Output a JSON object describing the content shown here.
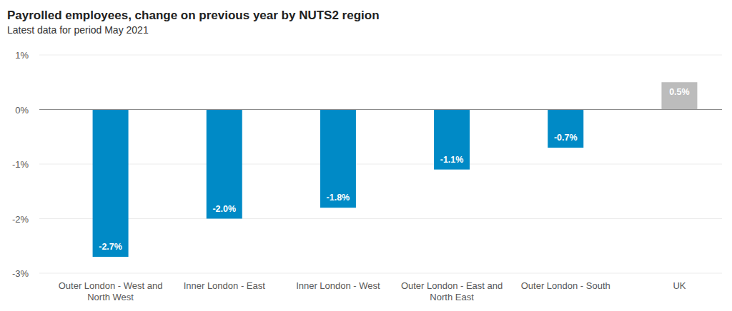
{
  "chart_data": {
    "type": "bar",
    "title": "Payrolled employees, change on previous year by NUTS2 region",
    "subtitle": "Latest data for period May 2021",
    "categories": [
      "Outer London - West and North West",
      "Inner London - East",
      "Inner London - West",
      "Outer London - East and North East",
      "Outer London - South",
      "UK"
    ],
    "values": [
      -2.7,
      -2.0,
      -1.8,
      -1.1,
      -0.7,
      0.5
    ],
    "value_labels": [
      "-2.7%",
      "-2.0%",
      "-1.8%",
      "-1.1%",
      "-0.7%",
      "0.5%"
    ],
    "colors": [
      "#008ac6",
      "#008ac6",
      "#008ac6",
      "#008ac6",
      "#008ac6",
      "#bcbcbc"
    ],
    "ylim": [
      -3,
      1
    ],
    "yticks": [
      {
        "value": 1,
        "label": "1%"
      },
      {
        "value": 0,
        "label": "0%"
      },
      {
        "value": -1,
        "label": "-1%"
      },
      {
        "value": -2,
        "label": "-2%"
      },
      {
        "value": -3,
        "label": "-3%"
      }
    ],
    "grid": true,
    "data_labels": true
  }
}
